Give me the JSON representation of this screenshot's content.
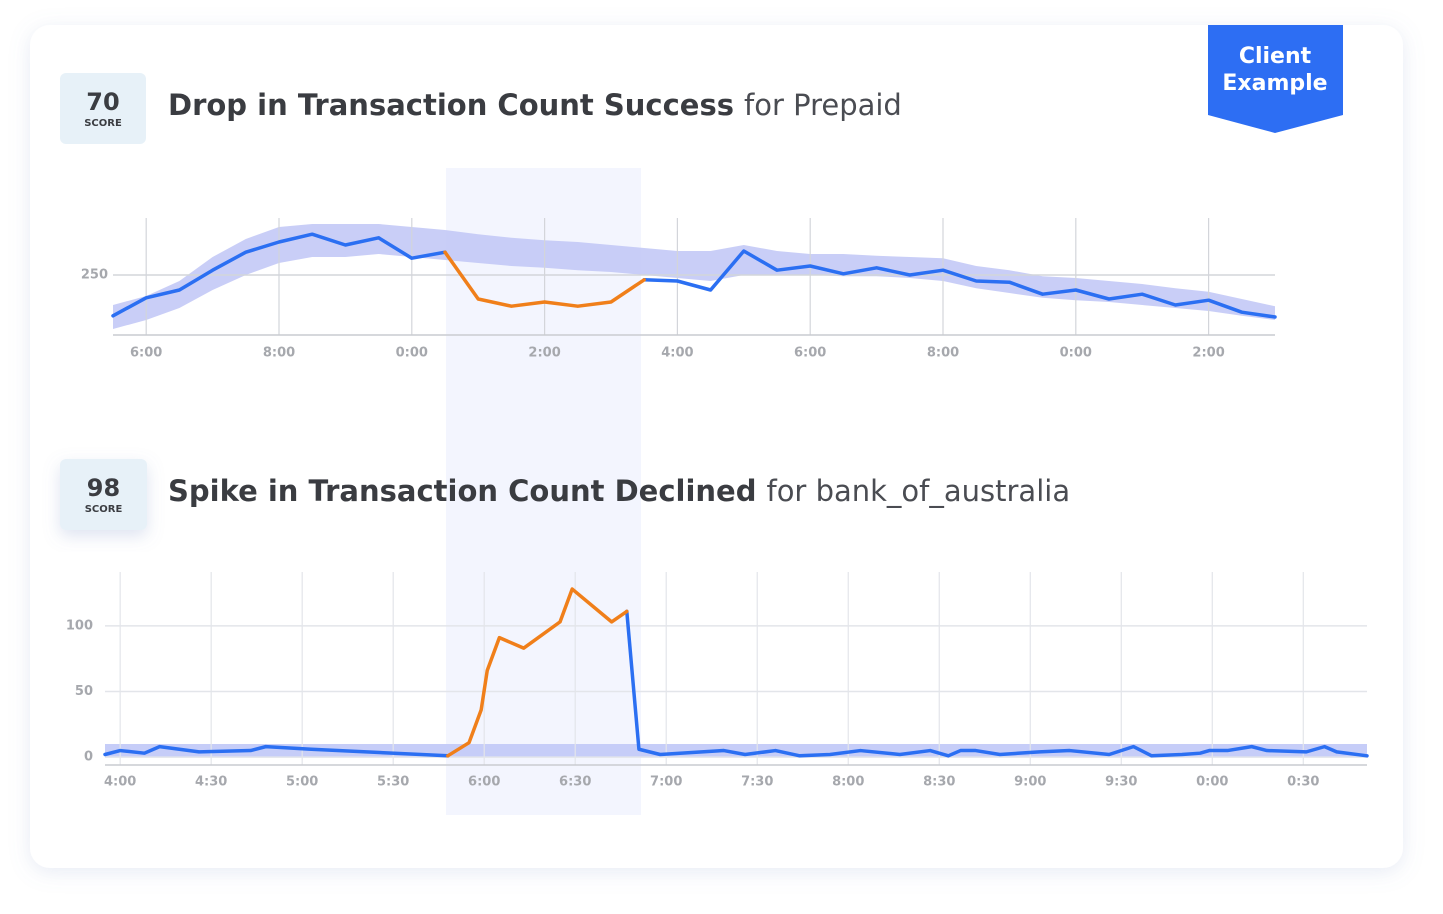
{
  "badge": [
    "Client",
    "Example"
  ],
  "chart_data": [
    {
      "type": "line",
      "score": 70,
      "score_label": "SCORE",
      "title": "Drop in Transaction Count Success",
      "title_detail": "for Prepaid",
      "x": [
        -0.5,
        0,
        0.5,
        1,
        1.5,
        2,
        2.5,
        3,
        3.5,
        4,
        4.5,
        5,
        5.5,
        6,
        6.5,
        7,
        7.5,
        8,
        8.5,
        9,
        9.5,
        10,
        10.5,
        11,
        11.5,
        12,
        12.5,
        13,
        13.5,
        14,
        14.5,
        15,
        15.5,
        16,
        16.5,
        17
      ],
      "xlim": [
        -0.5,
        17
      ],
      "xticks": [
        {
          "value": 0,
          "label": "6:00"
        },
        {
          "value": 2,
          "label": "8:00"
        },
        {
          "value": 4,
          "label": "0:00"
        },
        {
          "value": 6,
          "label": "2:00"
        },
        {
          "value": 8,
          "label": "4:00"
        },
        {
          "value": 10,
          "label": "6:00"
        },
        {
          "value": 12,
          "label": "8:00"
        },
        {
          "value": 14,
          "label": "0:00"
        },
        {
          "value": 16,
          "label": "2:00"
        }
      ],
      "ylim": [
        150,
        345
      ],
      "yticks": [
        250
      ],
      "grid": true,
      "band": {
        "color": "#c3c9f6",
        "upper": [
          200,
          215,
          240,
          280,
          310,
          330,
          335,
          335,
          335,
          330,
          325,
          318,
          312,
          308,
          305,
          300,
          295,
          290,
          290,
          300,
          290,
          285,
          285,
          282,
          280,
          278,
          265,
          258,
          248,
          245,
          240,
          235,
          228,
          222,
          210,
          198
        ],
        "lower": [
          160,
          175,
          195,
          225,
          250,
          270,
          280,
          280,
          285,
          280,
          275,
          270,
          265,
          262,
          258,
          255,
          250,
          245,
          240,
          250,
          250,
          250,
          248,
          248,
          245,
          240,
          228,
          220,
          212,
          208,
          205,
          200,
          195,
          190,
          182,
          175
        ]
      },
      "series": [
        {
          "color": "#2b6ff2",
          "values": [
            182,
            212,
            225,
            258,
            288,
            305,
            318,
            300,
            312,
            278,
            288,
            null,
            null,
            null,
            null,
            null,
            242,
            240,
            225,
            290,
            258,
            265,
            252,
            262,
            250,
            258,
            240,
            238,
            218,
            225,
            210,
            218,
            200,
            208,
            188,
            180
          ]
        },
        {
          "color": "#f07f1a",
          "values": [
            null,
            null,
            null,
            null,
            null,
            null,
            null,
            null,
            null,
            null,
            288,
            210,
            198,
            205,
            198,
            205,
            242,
            null,
            null,
            null,
            null,
            null,
            null,
            null,
            null,
            null,
            null,
            null,
            null,
            null,
            null,
            null,
            null,
            null,
            null,
            null
          ]
        }
      ]
    },
    {
      "type": "line",
      "score": 98,
      "score_label": "SCORE",
      "title": "Spike in Transaction Count Declined",
      "title_detail": "for bank_of_australia",
      "x": [
        -5,
        0,
        8,
        13,
        26,
        43,
        48,
        63,
        108,
        115,
        119,
        121,
        125,
        133,
        145,
        149,
        162,
        167,
        171,
        178,
        199,
        206,
        216,
        224,
        234,
        244,
        257,
        267,
        273,
        277,
        282,
        290,
        303,
        313,
        326,
        334,
        340,
        350,
        356,
        359,
        365,
        373,
        378,
        391,
        397,
        401,
        411
      ],
      "xlim": [
        -5,
        411
      ],
      "xticks": [
        {
          "value": 0,
          "label": "4:00"
        },
        {
          "value": 30,
          "label": "4:30"
        },
        {
          "value": 60,
          "label": "5:00"
        },
        {
          "value": 90,
          "label": "5:30"
        },
        {
          "value": 120,
          "label": "6:00"
        },
        {
          "value": 150,
          "label": "6:30"
        },
        {
          "value": 180,
          "label": "7:00"
        },
        {
          "value": 210,
          "label": "7:30"
        },
        {
          "value": 240,
          "label": "8:00"
        },
        {
          "value": 270,
          "label": "8:30"
        },
        {
          "value": 300,
          "label": "9:00"
        },
        {
          "value": 330,
          "label": "9:30"
        },
        {
          "value": 360,
          "label": "0:00"
        },
        {
          "value": 390,
          "label": "0:30"
        }
      ],
      "ylim": [
        -6,
        141
      ],
      "yticks": [
        0,
        50,
        100
      ],
      "grid": true,
      "band": {
        "color": "#c6cdf8",
        "lower": 0,
        "upper": 10
      },
      "series": [
        {
          "color": "#2b6ff2",
          "values": [
            2,
            5,
            3,
            8,
            4,
            5,
            8,
            6,
            1,
            null,
            null,
            null,
            null,
            null,
            null,
            null,
            null,
            111,
            6,
            2,
            5,
            2,
            5,
            1,
            2,
            5,
            2,
            5,
            1,
            5,
            5,
            2,
            4,
            5,
            2,
            8,
            1,
            2,
            3,
            5,
            5,
            8,
            5,
            4,
            8,
            4,
            1
          ]
        },
        {
          "color": "#f07f1a",
          "values": [
            null,
            null,
            null,
            null,
            null,
            null,
            null,
            null,
            1,
            11,
            36,
            66,
            91,
            83,
            103,
            128,
            103,
            111,
            null,
            null,
            null,
            null,
            null,
            null,
            null,
            null,
            null,
            null,
            null,
            null,
            null,
            null,
            null,
            null,
            null,
            null,
            null,
            null,
            null,
            null,
            null,
            null,
            null,
            null,
            null,
            null,
            null
          ]
        }
      ]
    }
  ]
}
